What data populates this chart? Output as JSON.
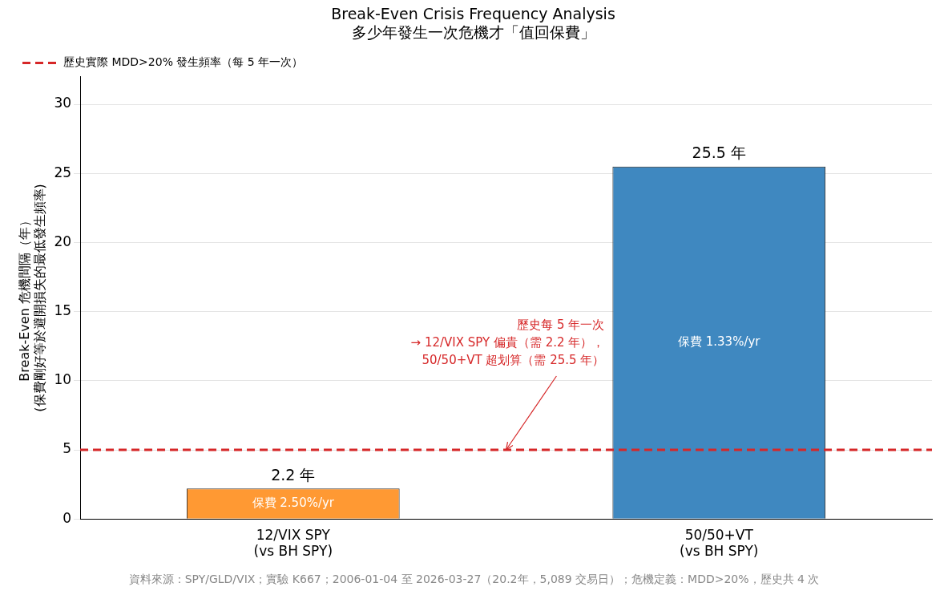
{
  "chart_data": {
    "type": "bar",
    "title": "Break-Even Crisis Frequency Analysis",
    "subtitle": "多少年發生一次危機才「值回保費」",
    "ylabel": "Break-Even 危機間隔（年）\n(保費剛好等於避開損失的最低發生頻率)",
    "categories": [
      "12/VIX SPY\n(vs BH SPY)",
      "50/50+VT\n(vs BH SPY)"
    ],
    "values": [
      2.2,
      25.5
    ],
    "colors": [
      "#ff9933",
      "#3f88c0"
    ],
    "value_labels": [
      "2.2 年",
      "25.5 年"
    ],
    "ylim": [
      0,
      32
    ],
    "yticks": [
      0,
      5,
      10,
      15,
      20,
      25,
      30
    ],
    "grid": "y",
    "legend": "top left",
    "ref_lines": [
      {
        "axis": "y",
        "value": 5,
        "label": "歷史實際 MDD>20% 發生頻率（每 5 年一次）",
        "color": "#d62728",
        "line_style": "dashed"
      }
    ],
    "annotations": [
      "保費 2.50%/yr",
      "保費 1.33%/yr",
      {
        "text": "歷史每 5 年一次\n→ 12/VIX SPY 偏貴（需 2.2 年），\n50/50+VT 超划算（需 25.5 年）",
        "y": 5
      },
      "資料來源：SPY/GLD/VIX；實驗 K667；2006-01-04 至 2026-03-27（20.2年，5,089 交易日）；危機定義：MDD>20%，歷史共 4 次"
    ]
  }
}
